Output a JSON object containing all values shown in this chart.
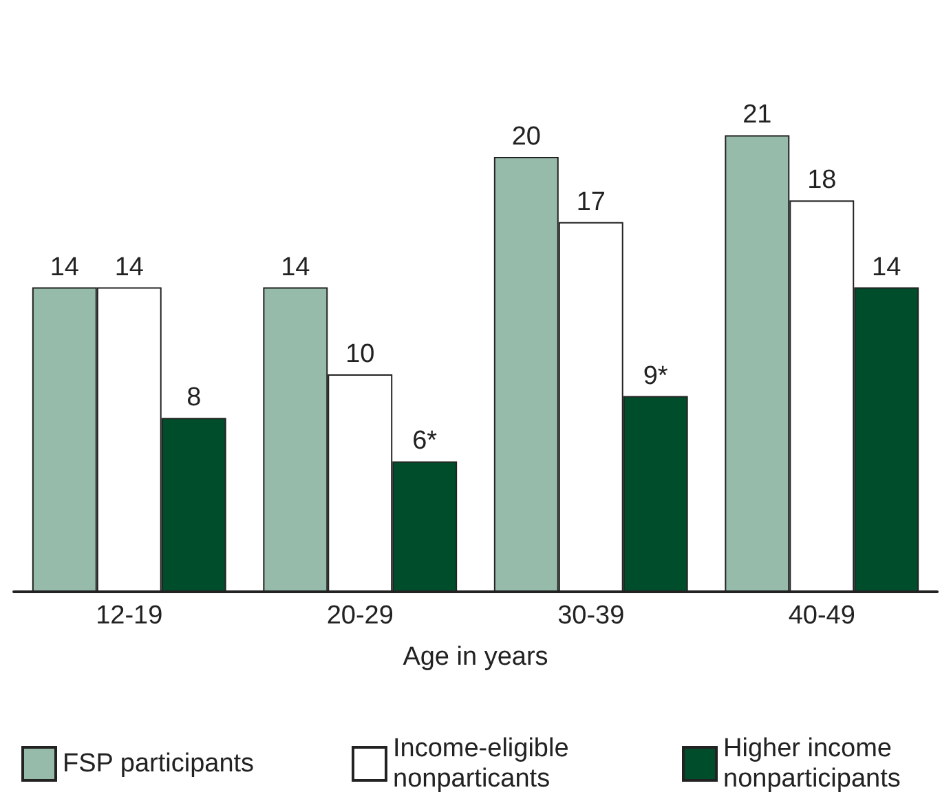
{
  "chart_data": {
    "type": "bar",
    "xlabel": "Age in years",
    "categories": [
      "12-19",
      "20-29",
      "30-39",
      "40-49"
    ],
    "series": [
      {
        "name": "FSP participants",
        "color": "#97bbab",
        "values": [
          14,
          14,
          20,
          21
        ],
        "value_labels": [
          "14",
          "14",
          "20",
          "21"
        ]
      },
      {
        "name": "Income-eligible nonparticants",
        "color": "#ffffff",
        "values": [
          14,
          10,
          17,
          18
        ],
        "value_labels": [
          "14",
          "10",
          "17",
          "18"
        ]
      },
      {
        "name": "Higher income nonparticipants",
        "color": "#004d2c",
        "values": [
          8,
          6,
          9,
          14
        ],
        "value_labels": [
          "8",
          "6*",
          "9*",
          "14"
        ]
      }
    ],
    "legend": "bottom"
  }
}
